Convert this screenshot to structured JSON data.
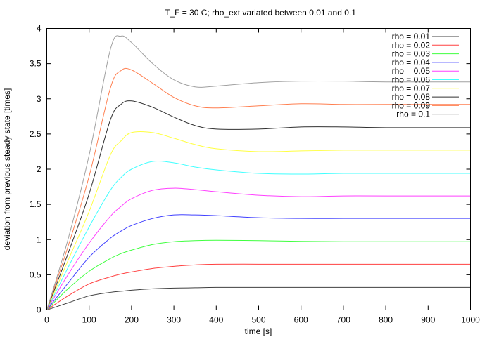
{
  "chart_data": {
    "type": "line",
    "title": "T_F = 30 C; rho_ext variated between 0.01 and 0.1",
    "xlabel": "time [s]",
    "ylabel": "deviation from previous steady state [times]",
    "xlim": [
      0,
      1000
    ],
    "ylim": [
      0,
      4
    ],
    "xticks": [
      "0",
      "100",
      "200",
      "300",
      "400",
      "500",
      "600",
      "700",
      "800",
      "900",
      "1000"
    ],
    "yticks": [
      "0",
      "0.5",
      "1",
      "1.5",
      "2",
      "2.5",
      "3",
      "3.5",
      "4"
    ],
    "grid": false,
    "legend": "top-right",
    "x": [
      0,
      50,
      100,
      150,
      175,
      200,
      250,
      300,
      350,
      400,
      500,
      600,
      700,
      800,
      1000
    ],
    "series": [
      {
        "name": "rho = 0.01",
        "color": "#404040",
        "values": [
          0,
          0.1,
          0.2,
          0.25,
          0.265,
          0.28,
          0.3,
          0.31,
          0.315,
          0.32,
          0.32,
          0.32,
          0.32,
          0.32,
          0.32
        ]
      },
      {
        "name": "rho = 0.02",
        "color": "#ff4040",
        "values": [
          0,
          0.2,
          0.37,
          0.47,
          0.51,
          0.54,
          0.59,
          0.62,
          0.64,
          0.65,
          0.65,
          0.65,
          0.65,
          0.65,
          0.65
        ]
      },
      {
        "name": "rho = 0.03",
        "color": "#40ff40",
        "values": [
          0,
          0.3,
          0.55,
          0.73,
          0.8,
          0.85,
          0.93,
          0.97,
          0.985,
          0.99,
          0.985,
          0.975,
          0.97,
          0.97,
          0.97
        ]
      },
      {
        "name": "rho = 0.04",
        "color": "#4040ff",
        "values": [
          0,
          0.38,
          0.75,
          1.02,
          1.12,
          1.2,
          1.3,
          1.35,
          1.35,
          1.34,
          1.31,
          1.3,
          1.3,
          1.3,
          1.3
        ]
      },
      {
        "name": "rho = 0.05",
        "color": "#ff40ff",
        "values": [
          0,
          0.5,
          0.95,
          1.33,
          1.47,
          1.58,
          1.7,
          1.73,
          1.71,
          1.68,
          1.63,
          1.61,
          1.62,
          1.62,
          1.62
        ]
      },
      {
        "name": "rho = 0.06",
        "color": "#40ffff",
        "values": [
          0,
          0.6,
          1.18,
          1.7,
          1.88,
          2.0,
          2.11,
          2.09,
          2.03,
          1.99,
          1.94,
          1.93,
          1.94,
          1.94,
          1.94
        ]
      },
      {
        "name": "rho = 0.07",
        "color": "#ffff40",
        "values": [
          0,
          0.7,
          1.4,
          2.2,
          2.4,
          2.52,
          2.52,
          2.44,
          2.35,
          2.29,
          2.25,
          2.26,
          2.27,
          2.27,
          2.27
        ]
      },
      {
        "name": "rho = 0.08",
        "color": "#303030",
        "values": [
          0,
          0.8,
          1.65,
          2.7,
          2.92,
          2.97,
          2.88,
          2.74,
          2.62,
          2.57,
          2.57,
          2.6,
          2.6,
          2.59,
          2.59
        ]
      },
      {
        "name": "rho = 0.09",
        "color": "#ff7f50",
        "values": [
          0,
          0.9,
          1.9,
          3.15,
          3.4,
          3.41,
          3.22,
          3.02,
          2.9,
          2.87,
          2.9,
          2.93,
          2.92,
          2.92,
          2.92
        ]
      },
      {
        "name": "rho = 0.1",
        "color": "#a0a0a0",
        "values": [
          0,
          1.0,
          2.2,
          3.7,
          3.89,
          3.8,
          3.5,
          3.27,
          3.17,
          3.18,
          3.23,
          3.25,
          3.25,
          3.24,
          3.24
        ]
      }
    ]
  }
}
